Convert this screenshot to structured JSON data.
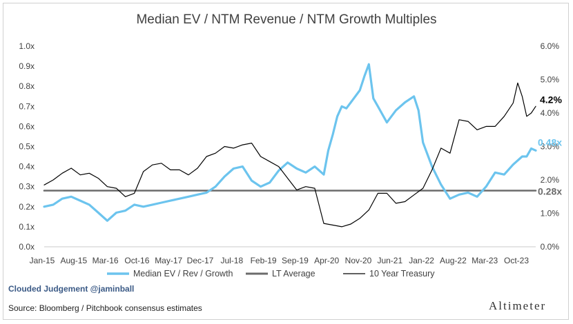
{
  "title": "Median EV / NTM Revenue / NTM Growth Multiples",
  "credit": "Clouded Judgement @jaminball",
  "source": "Source: Bloomberg / Pitchbook consensus estimates",
  "brand": "Altimeter",
  "colors": {
    "median": "#6cc4ee",
    "lt_average": "#6b6b6b",
    "treasury": "#000000",
    "callout_median": "#6cc4ee",
    "callout_lt": "#6b6b6b",
    "callout_treasury": "#000000"
  },
  "chart_data": {
    "type": "line",
    "title": "Median EV / NTM Revenue / NTM Growth Multiples",
    "x_tick_labels": [
      "Jan-15",
      "Aug-15",
      "Mar-16",
      "Oct-16",
      "May-17",
      "Dec-17",
      "Jul-18",
      "Feb-19",
      "Sep-19",
      "Apr-20",
      "Nov-20",
      "Jun-21",
      "Jan-22",
      "Aug-22",
      "Mar-23",
      "Oct-23"
    ],
    "x_range": [
      "2015-01",
      "2024-02"
    ],
    "y_left": {
      "range": [
        0,
        1.0
      ],
      "ticks": [
        0,
        0.1,
        0.2,
        0.3,
        0.4,
        0.5,
        0.6,
        0.7,
        0.8,
        0.9,
        1.0
      ],
      "tick_labels": [
        "0.0x",
        "0.1x",
        "0.2x",
        "0.3x",
        "0.4x",
        "0.5x",
        "0.6x",
        "0.7x",
        "0.8x",
        "0.9x",
        "1.0x"
      ]
    },
    "y_right": {
      "range": [
        0,
        6.0
      ],
      "ticks": [
        0,
        1,
        2,
        3,
        4,
        5,
        6
      ],
      "tick_labels": [
        "0.0%",
        "1.0%",
        "2.0%",
        "3.0%",
        "4.0%",
        "5.0%",
        "6.0%"
      ]
    },
    "grid": false,
    "legend_position": "bottom",
    "callouts": {
      "treasury": "4.2%",
      "median": "0.48x",
      "lt_average": "0.28x"
    },
    "series": [
      {
        "name": "Median EV / Rev / Growth",
        "axis": "left",
        "x": [
          "2015-01",
          "2015-03",
          "2015-05",
          "2015-07",
          "2015-09",
          "2015-11",
          "2016-01",
          "2016-03",
          "2016-05",
          "2016-07",
          "2016-09",
          "2016-11",
          "2017-01",
          "2017-03",
          "2017-05",
          "2017-07",
          "2017-09",
          "2017-11",
          "2018-01",
          "2018-03",
          "2018-05",
          "2018-07",
          "2018-09",
          "2018-11",
          "2019-01",
          "2019-03",
          "2019-05",
          "2019-07",
          "2019-09",
          "2019-11",
          "2020-01",
          "2020-03",
          "2020-04",
          "2020-05",
          "2020-06",
          "2020-07",
          "2020-08",
          "2020-09",
          "2020-11",
          "2020-12",
          "2021-01",
          "2021-02",
          "2021-03",
          "2021-05",
          "2021-07",
          "2021-09",
          "2021-11",
          "2021-12",
          "2022-01",
          "2022-03",
          "2022-05",
          "2022-07",
          "2022-09",
          "2022-11",
          "2023-01",
          "2023-03",
          "2023-05",
          "2023-07",
          "2023-09",
          "2023-11",
          "2023-12",
          "2024-01",
          "2024-02"
        ],
        "values": [
          0.2,
          0.21,
          0.24,
          0.25,
          0.23,
          0.21,
          0.17,
          0.13,
          0.17,
          0.18,
          0.21,
          0.2,
          0.21,
          0.22,
          0.23,
          0.24,
          0.25,
          0.26,
          0.27,
          0.3,
          0.35,
          0.39,
          0.4,
          0.33,
          0.3,
          0.32,
          0.38,
          0.42,
          0.39,
          0.37,
          0.4,
          0.36,
          0.48,
          0.56,
          0.65,
          0.7,
          0.69,
          0.72,
          0.78,
          0.85,
          0.91,
          0.74,
          0.7,
          0.62,
          0.68,
          0.72,
          0.75,
          0.68,
          0.52,
          0.4,
          0.31,
          0.24,
          0.26,
          0.27,
          0.25,
          0.3,
          0.37,
          0.36,
          0.41,
          0.45,
          0.45,
          0.49,
          0.48
        ]
      },
      {
        "name": "LT Average",
        "axis": "left",
        "x": [
          "2015-01",
          "2024-02"
        ],
        "values": [
          0.28,
          0.28
        ]
      },
      {
        "name": "10 Year Treasury",
        "axis": "right",
        "x": [
          "2015-01",
          "2015-03",
          "2015-05",
          "2015-07",
          "2015-09",
          "2015-11",
          "2016-01",
          "2016-03",
          "2016-05",
          "2016-07",
          "2016-09",
          "2016-11",
          "2017-01",
          "2017-03",
          "2017-05",
          "2017-07",
          "2017-09",
          "2017-11",
          "2018-01",
          "2018-03",
          "2018-05",
          "2018-07",
          "2018-09",
          "2018-11",
          "2019-01",
          "2019-03",
          "2019-05",
          "2019-07",
          "2019-09",
          "2019-11",
          "2020-01",
          "2020-03",
          "2020-05",
          "2020-07",
          "2020-09",
          "2020-11",
          "2021-01",
          "2021-03",
          "2021-05",
          "2021-07",
          "2021-09",
          "2021-11",
          "2022-01",
          "2022-03",
          "2022-05",
          "2022-07",
          "2022-09",
          "2022-11",
          "2023-01",
          "2023-03",
          "2023-05",
          "2023-07",
          "2023-09",
          "2023-10",
          "2023-11",
          "2023-12",
          "2024-01",
          "2024-02"
        ],
        "values": [
          1.85,
          2.0,
          2.2,
          2.35,
          2.15,
          2.2,
          2.05,
          1.8,
          1.75,
          1.5,
          1.6,
          2.25,
          2.45,
          2.5,
          2.3,
          2.3,
          2.15,
          2.35,
          2.7,
          2.8,
          3.0,
          2.95,
          3.05,
          3.1,
          2.7,
          2.55,
          2.4,
          2.05,
          1.7,
          1.8,
          1.75,
          0.7,
          0.65,
          0.6,
          0.68,
          0.85,
          1.1,
          1.6,
          1.6,
          1.3,
          1.35,
          1.55,
          1.75,
          2.3,
          2.95,
          2.8,
          3.8,
          3.75,
          3.5,
          3.6,
          3.6,
          3.9,
          4.3,
          4.9,
          4.5,
          3.9,
          4.0,
          4.2
        ]
      }
    ]
  },
  "legend": [
    {
      "label": "Median EV / Rev / Growth"
    },
    {
      "label": "LT Average"
    },
    {
      "label": "10 Year Treasury"
    }
  ]
}
